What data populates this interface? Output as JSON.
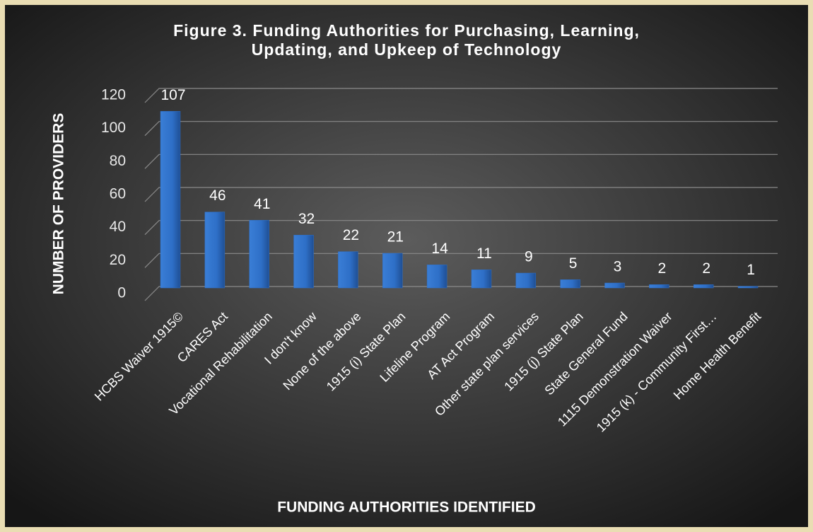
{
  "chart_data": {
    "type": "bar",
    "title": [
      "Figure 3. Funding Authorities  for Purchasing, Learning,",
      "Updating, and Upkeep of  Technology"
    ],
    "x_label": "FUNDING AUTHORITIES IDENTIFIED",
    "y_label": "NUMBER OF PROVIDERS",
    "categories": [
      "HCBS Waiver 1915©",
      "CARES Act",
      "Vocational Rehabilitation",
      "I don't know",
      "None of the above",
      "1915 (i) State Plan",
      "Lifeline Program",
      "AT Act Program",
      "Other state plan services",
      "1915 (j) State Plan",
      "State General Fund",
      "1115 Demonstration Waiver",
      "1915 (k) - Community First…",
      "Home Health Benefit"
    ],
    "values": [
      107,
      46,
      41,
      32,
      22,
      21,
      14,
      11,
      9,
      5,
      3,
      2,
      2,
      1
    ],
    "color": "#2e6fc7",
    "ylim": [
      0,
      120
    ],
    "yticks": [
      0,
      20,
      40,
      60,
      80,
      100,
      120
    ],
    "grid": true
  }
}
